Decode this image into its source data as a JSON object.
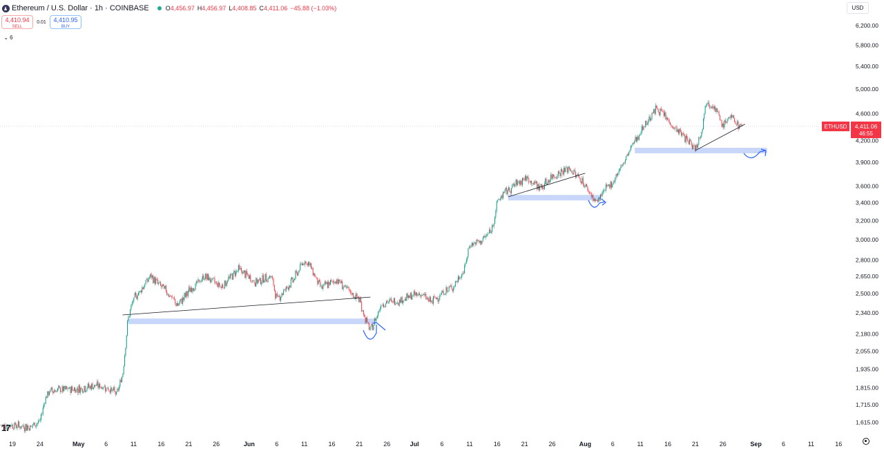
{
  "header": {
    "title": "Ethereum / U.S. Dollar · 1h · COINBASE",
    "ohlc": [
      {
        "k": "O",
        "v": "4,456.97"
      },
      {
        "k": "H",
        "v": "4,456.97"
      },
      {
        "k": "L",
        "v": "4,408.85"
      },
      {
        "k": "C",
        "v": "4,411.06"
      },
      {
        "k": "",
        "v": "−45.88 (−1.03%)"
      }
    ],
    "status_color": "#22ab94"
  },
  "trade": {
    "sell_price": "4,410.94",
    "sell_label": "SELL",
    "spread": "0.01",
    "buy_price": "4,410.95",
    "buy_label": "BUY"
  },
  "indicators_collapse": "6",
  "currency": "USD",
  "price_tag": {
    "symbol": "ETHUSD",
    "price": "4,411.06",
    "countdown": "46:55",
    "color": "#f23645"
  },
  "chart_data": {
    "type": "candlestick",
    "colors": {
      "up": "#089981",
      "down": "#f23645",
      "zone": "#c7d6f9",
      "drawing": "#2962ff",
      "trendline": "#131722"
    },
    "y_scale": "log",
    "y_ticks": [
      "6,200.00",
      "5,800.00",
      "5,400.00",
      "5,000.00",
      "4,600.00",
      "4,200.00",
      "3,900.00",
      "3,600.00",
      "3,400.00",
      "3,200.00",
      "3,000.00",
      "2,800.00",
      "2,650.00",
      "2,500.00",
      "2,340.00",
      "2,180.00",
      "2,055.00",
      "1,935.00",
      "1,815.00",
      "1,715.00",
      "1,615.00"
    ],
    "x_ticks": [
      "19",
      "24",
      "May",
      "6",
      "11",
      "16",
      "21",
      "26",
      "Jun",
      "6",
      "11",
      "16",
      "21",
      "26",
      "Jul",
      "6",
      "11",
      "16",
      "21",
      "26",
      "Aug",
      "6",
      "11",
      "16",
      "21",
      "26",
      "Sep",
      "6",
      "11",
      "16"
    ],
    "x_range": [
      "Apr 19",
      "Sep 16"
    ],
    "last_price": 4411.06,
    "price_path": [
      [
        "Apr 19",
        1600
      ],
      [
        "Apr 22",
        1590
      ],
      [
        "Apr 24",
        1620
      ],
      [
        "Apr 25",
        1760
      ],
      [
        "Apr 26",
        1800
      ],
      [
        "May 1",
        1810
      ],
      [
        "May 4",
        1830
      ],
      [
        "May 6",
        1820
      ],
      [
        "May 8",
        1780
      ],
      [
        "May 9",
        1900
      ],
      [
        "May 10",
        2300
      ],
      [
        "May 11",
        2450
      ],
      [
        "May 13",
        2580
      ],
      [
        "May 14",
        2650
      ],
      [
        "May 17",
        2520
      ],
      [
        "May 19",
        2400
      ],
      [
        "May 21",
        2520
      ],
      [
        "May 24",
        2650
      ],
      [
        "May 27",
        2560
      ],
      [
        "May 30",
        2720
      ],
      [
        "Jun 2",
        2600
      ],
      [
        "Jun 5",
        2650
      ],
      [
        "Jun 6",
        2450
      ],
      [
        "Jun 9",
        2620
      ],
      [
        "Jun 11",
        2800
      ],
      [
        "Jun 12",
        2750
      ],
      [
        "Jun 14",
        2550
      ],
      [
        "Jun 17",
        2620
      ],
      [
        "Jun 19",
        2520
      ],
      [
        "Jun 21",
        2450
      ],
      [
        "Jun 22",
        2300
      ],
      [
        "Jun 23",
        2200
      ],
      [
        "Jun 24",
        2300
      ],
      [
        "Jun 25",
        2420
      ],
      [
        "Jun 28",
        2440
      ],
      [
        "Jul 2",
        2500
      ],
      [
        "Jul 4",
        2430
      ],
      [
        "Jul 6",
        2500
      ],
      [
        "Jul 8",
        2560
      ],
      [
        "Jul 10",
        2700
      ],
      [
        "Jul 11",
        2950
      ],
      [
        "Jul 13",
        2980
      ],
      [
        "Jul 15",
        3100
      ],
      [
        "Jul 16",
        3400
      ],
      [
        "Jul 17",
        3500
      ],
      [
        "Jul 19",
        3600
      ],
      [
        "Jul 21",
        3700
      ],
      [
        "Jul 24",
        3580
      ],
      [
        "Jul 26",
        3720
      ],
      [
        "Jul 29",
        3820
      ],
      [
        "Jul 31",
        3700
      ],
      [
        "Aug 2",
        3500
      ],
      [
        "Aug 3",
        3400
      ],
      [
        "Aug 4",
        3500
      ],
      [
        "Aug 6",
        3650
      ],
      [
        "Aug 8",
        3900
      ],
      [
        "Aug 10",
        4200
      ],
      [
        "Aug 12",
        4450
      ],
      [
        "Aug 14",
        4700
      ],
      [
        "Aug 15",
        4600
      ],
      [
        "Aug 17",
        4400
      ],
      [
        "Aug 19",
        4250
      ],
      [
        "Aug 21",
        4100
      ],
      [
        "Aug 22",
        4300
      ],
      [
        "Aug 23",
        4800
      ],
      [
        "Aug 24",
        4750
      ],
      [
        "Aug 25",
        4600
      ],
      [
        "Aug 26",
        4400
      ],
      [
        "Aug 27",
        4550
      ],
      [
        "Aug 28",
        4500
      ],
      [
        "Aug 29",
        4411
      ]
    ],
    "support_zones": [
      {
        "from": "May 10",
        "to": "Jun 24",
        "price": 2275
      },
      {
        "from": "Jul 18",
        "to": "Aug 4",
        "price": 3460
      },
      {
        "from": "Aug 10",
        "to": "Sep 3",
        "price": 4060
      }
    ],
    "trendlines": [
      {
        "from": [
          "May 9",
          2325
        ],
        "to": [
          "Jun 23",
          2470
        ]
      },
      {
        "from": [
          "Jul 18",
          3470
        ],
        "to": [
          "Aug 1",
          3760
        ]
      },
      {
        "from": [
          "Aug 21",
          4060
        ],
        "to": [
          "Aug 30",
          4440
        ]
      }
    ]
  }
}
